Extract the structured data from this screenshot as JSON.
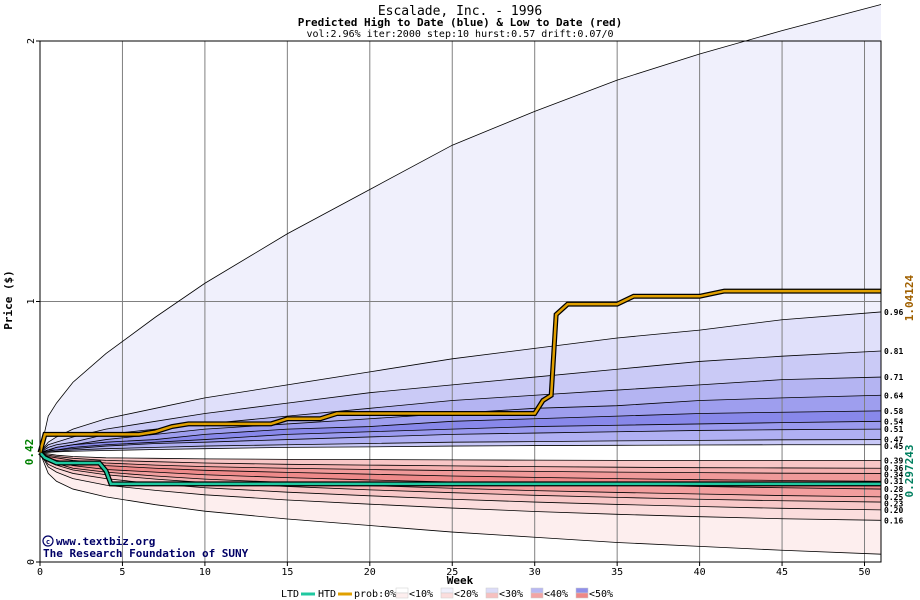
{
  "header": {
    "title": "Escalade, Inc. - 1996",
    "subtitle": "Predicted High to Date (blue) &  Low to Date (red)",
    "params": "vol:2.96% iter:2000 step:10 hurst:0.57 drift:0.07/0"
  },
  "credits": {
    "site": "www.textbiz.org",
    "org": "The Research Foundation of SUNY"
  },
  "colors": {
    "htd_line": "#e0a000",
    "ltd_line": "#20c8a0",
    "htd_value_text": "#a06000",
    "ltd_value_text": "#008060",
    "start_value_text": "#008000",
    "grid": "#808080"
  },
  "chart_data": {
    "type": "area",
    "title": "Escalade, Inc. - 1996",
    "xlabel": "Week",
    "ylabel": "Price ($)",
    "xlim": [
      0,
      51
    ],
    "ylim": [
      0,
      2
    ],
    "xticks": [
      0,
      5,
      10,
      15,
      20,
      25,
      30,
      35,
      40,
      45,
      50
    ],
    "yticks": [
      0,
      1,
      2
    ],
    "grid": true,
    "start_value": 0.42,
    "start_label": "0.42",
    "htd_final_label": "1.04124",
    "ltd_final_label": "0.297243",
    "quantile_x": [
      0,
      0.5,
      1,
      2,
      4,
      7,
      10,
      15,
      20,
      25,
      30,
      35,
      40,
      45,
      51
    ],
    "high_quantiles": [
      {
        "label": "",
        "values": [
          0.42,
          0.56,
          0.61,
          0.69,
          0.8,
          0.94,
          1.07,
          1.26,
          1.43,
          1.6,
          1.73,
          1.85,
          1.95,
          2.04,
          2.14
        ]
      },
      {
        "label": "0.96",
        "values": [
          0.42,
          0.46,
          0.48,
          0.51,
          0.55,
          0.59,
          0.63,
          0.68,
          0.73,
          0.78,
          0.82,
          0.86,
          0.89,
          0.93,
          0.96
        ]
      },
      {
        "label": "0.81",
        "values": [
          0.42,
          0.45,
          0.46,
          0.48,
          0.51,
          0.54,
          0.57,
          0.61,
          0.65,
          0.68,
          0.71,
          0.74,
          0.77,
          0.79,
          0.81
        ]
      },
      {
        "label": "0.71",
        "values": [
          0.42,
          0.44,
          0.45,
          0.46,
          0.49,
          0.51,
          0.53,
          0.56,
          0.59,
          0.62,
          0.64,
          0.66,
          0.68,
          0.7,
          0.71
        ]
      },
      {
        "label": "0.64",
        "values": [
          0.42,
          0.43,
          0.44,
          0.45,
          0.47,
          0.49,
          0.51,
          0.53,
          0.55,
          0.57,
          0.59,
          0.6,
          0.62,
          0.63,
          0.64
        ]
      },
      {
        "label": "0.58",
        "values": [
          0.42,
          0.43,
          0.44,
          0.45,
          0.46,
          0.47,
          0.49,
          0.51,
          0.52,
          0.54,
          0.55,
          0.56,
          0.57,
          0.575,
          0.58
        ]
      },
      {
        "label": "0.54",
        "values": [
          0.42,
          0.43,
          0.43,
          0.44,
          0.45,
          0.46,
          0.47,
          0.49,
          0.5,
          0.51,
          0.52,
          0.525,
          0.53,
          0.535,
          0.54
        ]
      },
      {
        "label": "0.51",
        "values": [
          0.42,
          0.425,
          0.43,
          0.435,
          0.445,
          0.455,
          0.46,
          0.47,
          0.48,
          0.49,
          0.495,
          0.5,
          0.505,
          0.508,
          0.51
        ]
      },
      {
        "label": "0.47",
        "values": [
          0.42,
          0.422,
          0.425,
          0.43,
          0.435,
          0.44,
          0.445,
          0.45,
          0.455,
          0.46,
          0.462,
          0.465,
          0.467,
          0.469,
          0.47
        ]
      },
      {
        "label": "0.45",
        "values": [
          0.42,
          0.421,
          0.423,
          0.425,
          0.428,
          0.432,
          0.435,
          0.44,
          0.442,
          0.445,
          0.447,
          0.448,
          0.449,
          0.45,
          0.45
        ]
      }
    ],
    "low_quantiles": [
      {
        "label": "0.39",
        "values": [
          0.42,
          0.415,
          0.41,
          0.405,
          0.4,
          0.398,
          0.396,
          0.394,
          0.393,
          0.392,
          0.391,
          0.39,
          0.39,
          0.39,
          0.39
        ]
      },
      {
        "label": "0.36",
        "values": [
          0.42,
          0.41,
          0.405,
          0.398,
          0.39,
          0.385,
          0.38,
          0.375,
          0.372,
          0.369,
          0.366,
          0.364,
          0.362,
          0.361,
          0.36
        ]
      },
      {
        "label": "0.34",
        "values": [
          0.42,
          0.405,
          0.4,
          0.39,
          0.38,
          0.372,
          0.366,
          0.36,
          0.355,
          0.351,
          0.348,
          0.345,
          0.343,
          0.341,
          0.34
        ]
      },
      {
        "label": "0.31",
        "values": [
          0.42,
          0.4,
          0.39,
          0.38,
          0.37,
          0.36,
          0.352,
          0.344,
          0.337,
          0.33,
          0.325,
          0.32,
          0.316,
          0.313,
          0.31
        ]
      },
      {
        "label": "0.28",
        "values": [
          0.42,
          0.395,
          0.385,
          0.37,
          0.355,
          0.345,
          0.335,
          0.324,
          0.315,
          0.307,
          0.3,
          0.295,
          0.29,
          0.285,
          0.28
        ]
      },
      {
        "label": "0.25",
        "values": [
          0.42,
          0.39,
          0.378,
          0.36,
          0.345,
          0.33,
          0.318,
          0.305,
          0.293,
          0.283,
          0.274,
          0.267,
          0.261,
          0.255,
          0.25
        ]
      },
      {
        "label": "0.23",
        "values": [
          0.42,
          0.385,
          0.372,
          0.353,
          0.335,
          0.318,
          0.305,
          0.29,
          0.277,
          0.266,
          0.256,
          0.248,
          0.241,
          0.235,
          0.23
        ]
      },
      {
        "label": "0.20",
        "values": [
          0.42,
          0.375,
          0.36,
          0.34,
          0.32,
          0.3,
          0.285,
          0.268,
          0.254,
          0.241,
          0.23,
          0.221,
          0.213,
          0.206,
          0.2
        ]
      },
      {
        "label": "0.16",
        "values": [
          0.42,
          0.365,
          0.345,
          0.32,
          0.295,
          0.275,
          0.258,
          0.238,
          0.222,
          0.207,
          0.194,
          0.183,
          0.174,
          0.166,
          0.16
        ]
      },
      {
        "label": "",
        "values": [
          0.42,
          0.34,
          0.31,
          0.28,
          0.25,
          0.22,
          0.195,
          0.165,
          0.14,
          0.115,
          0.095,
          0.075,
          0.06,
          0.045,
          0.03
        ]
      }
    ],
    "htd_path": {
      "x": [
        0,
        0.3,
        1,
        2,
        3,
        4,
        5,
        6,
        7,
        8,
        9,
        10,
        12,
        14,
        15,
        16,
        17,
        18,
        19,
        20,
        22,
        24,
        26,
        28,
        30,
        30.5,
        31,
        31.3,
        32,
        33,
        34,
        35,
        36,
        38,
        40,
        41.5,
        43,
        45,
        47,
        49,
        51
      ],
      "y": [
        0.42,
        0.49,
        0.49,
        0.49,
        0.49,
        0.49,
        0.49,
        0.49,
        0.5,
        0.52,
        0.53,
        0.53,
        0.53,
        0.53,
        0.55,
        0.55,
        0.55,
        0.57,
        0.57,
        0.57,
        0.57,
        0.57,
        0.57,
        0.57,
        0.57,
        0.62,
        0.64,
        0.95,
        0.99,
        0.99,
        0.99,
        0.99,
        1.02,
        1.02,
        1.02,
        1.04,
        1.04,
        1.04,
        1.04,
        1.04,
        1.04
      ]
    },
    "ltd_path": {
      "x": [
        0,
        0.3,
        1,
        2,
        3,
        3.6,
        4,
        4.3,
        5,
        10,
        15,
        20,
        25,
        30,
        35,
        40,
        45,
        51
      ],
      "y": [
        0.42,
        0.4,
        0.38,
        0.38,
        0.38,
        0.38,
        0.35,
        0.3,
        0.3,
        0.3,
        0.3,
        0.3,
        0.3,
        0.3,
        0.3,
        0.3,
        0.3,
        0.3
      ]
    },
    "legend": {
      "ltd": "LTD",
      "htd": "HTD",
      "prob_label": "prob:0%",
      "bins": [
        "<10%",
        "<20%",
        "<30%",
        "<40%",
        "<50%"
      ]
    }
  }
}
